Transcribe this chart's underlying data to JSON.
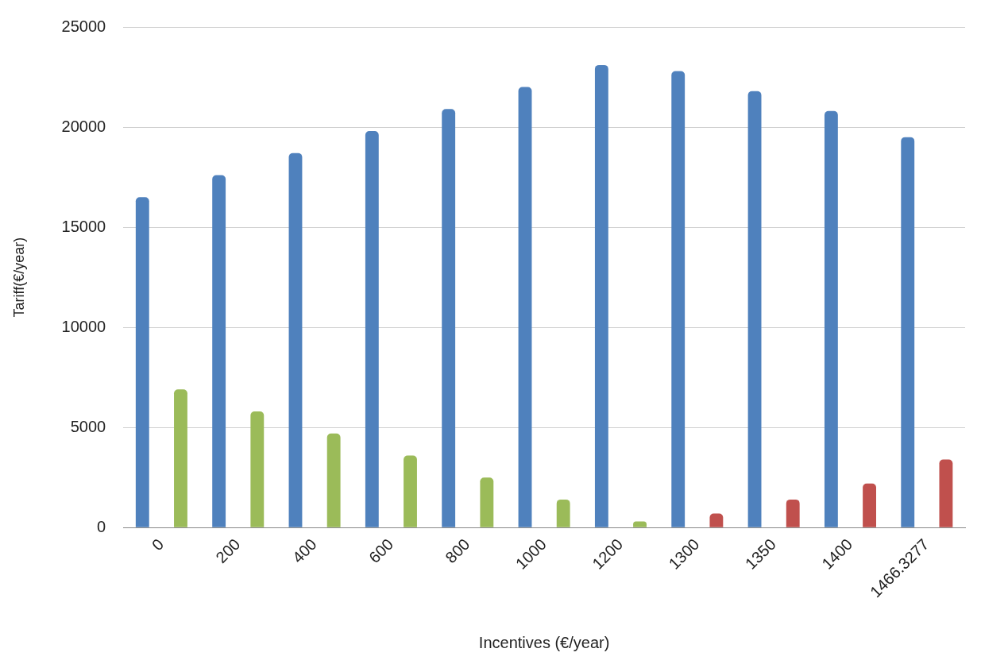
{
  "chart_data": {
    "type": "bar",
    "xlabel": "Incentives (€/year)",
    "ylabel": "Tariff(€/year)",
    "categories": [
      "0",
      "200",
      "400",
      "600",
      "800",
      "1000",
      "1200",
      "1300",
      "1350",
      "1400",
      "1466.3277"
    ],
    "series": [
      {
        "color": "#4f81bd",
        "values": [
          16500,
          17600,
          18700,
          19800,
          20900,
          22000,
          23100,
          22800,
          21800,
          20800,
          19500
        ]
      },
      {
        "colors": [
          "#9bbb59",
          "#9bbb59",
          "#9bbb59",
          "#9bbb59",
          "#9bbb59",
          "#9bbb59",
          "#9bbb59",
          "#c0504d",
          "#c0504d",
          "#c0504d",
          "#c0504d"
        ],
        "values": [
          6900,
          5800,
          4700,
          3600,
          2500,
          1400,
          300,
          700,
          1400,
          2200,
          3400
        ]
      }
    ],
    "ylim": [
      0,
      25000
    ],
    "yticks": [
      0,
      5000,
      10000,
      15000,
      20000,
      25000
    ],
    "grid": "y",
    "legend": false
  }
}
